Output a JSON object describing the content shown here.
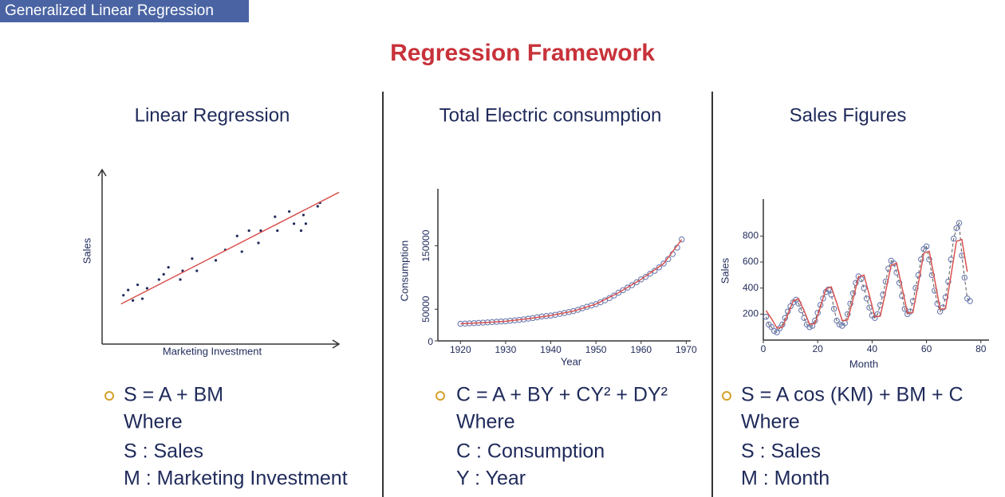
{
  "header": {
    "tag": "Generalized Linear Regression",
    "title": "Regression Framework"
  },
  "chart_data": [
    {
      "type": "scatter",
      "title": "Linear Regression",
      "x_label": "Marketing Investment",
      "y_label": "Sales",
      "xlim": [
        0,
        100
      ],
      "ylim": [
        0,
        100
      ],
      "arrows": true,
      "series": [
        {
          "color": "#1f2a5a",
          "mode": "markers",
          "marker": "dot",
          "x": [
            9,
            11,
            13,
            15,
            17,
            19,
            24,
            26,
            28,
            33,
            34,
            38,
            40,
            48,
            52,
            57,
            59,
            62,
            66,
            67,
            73,
            74,
            79,
            81,
            84,
            85,
            86,
            91,
            92
          ],
          "values": [
            28,
            31,
            25,
            34,
            26,
            32,
            37,
            40,
            44,
            37,
            42,
            49,
            42,
            48,
            54,
            62,
            53,
            65,
            58,
            65,
            73,
            65,
            76,
            69,
            65,
            74,
            69,
            79,
            81
          ]
        },
        {
          "color": "#d9534f",
          "mode": "line",
          "x": [
            8,
            100
          ],
          "values": [
            23,
            87
          ]
        }
      ]
    },
    {
      "type": "scatter",
      "title": "Total Electric consumption",
      "x_label": "Year",
      "y_label": "Consumption",
      "xlim": [
        1915,
        1971
      ],
      "ylim": [
        0,
        240000
      ],
      "xticks": [
        1920,
        1930,
        1940,
        1950,
        1960,
        1970
      ],
      "yticks": [
        0,
        50000,
        150000
      ],
      "series": [
        {
          "color": "#6c7bb0",
          "mode": "markers",
          "marker": "circle",
          "x": [
            1920,
            1921,
            1922,
            1923,
            1924,
            1925,
            1926,
            1927,
            1928,
            1929,
            1930,
            1931,
            1932,
            1933,
            1934,
            1935,
            1936,
            1937,
            1938,
            1939,
            1940,
            1941,
            1942,
            1943,
            1944,
            1945,
            1946,
            1947,
            1948,
            1949,
            1950,
            1951,
            1952,
            1953,
            1954,
            1955,
            1956,
            1957,
            1958,
            1959,
            1960,
            1961,
            1962,
            1963,
            1964,
            1965,
            1966,
            1967,
            1968,
            1969
          ],
          "values": [
            27000,
            27300,
            27600,
            28000,
            28400,
            28800,
            29200,
            29700,
            30100,
            30600,
            31000,
            31700,
            32400,
            33200,
            34000,
            35000,
            36000,
            37200,
            38500,
            39200,
            40000,
            41200,
            42600,
            44000,
            45500,
            47000,
            49000,
            51500,
            53800,
            55900,
            58000,
            61000,
            64000,
            67500,
            71500,
            76000,
            80000,
            84000,
            88000,
            92500,
            97000,
            101000,
            106000,
            110500,
            116000,
            122000,
            129000,
            137000,
            147000,
            160000
          ]
        },
        {
          "color": "#d9534f",
          "mode": "line",
          "x": [
            1920,
            1925,
            1930,
            1935,
            1940,
            1945,
            1950,
            1955,
            1960,
            1965,
            1969
          ],
          "values": [
            27000,
            28800,
            31000,
            35000,
            40000,
            47000,
            58000,
            76000,
            97000,
            122000,
            160000
          ]
        }
      ]
    },
    {
      "type": "scatter",
      "title": "Sales Figures",
      "x_label": "Month",
      "y_label": "Sales",
      "xlim": [
        0,
        83
      ],
      "ylim": [
        0,
        1084
      ],
      "xticks": [
        0,
        20,
        40,
        60,
        80
      ],
      "yticks": [
        200,
        400,
        600,
        800
      ],
      "series": [
        {
          "color": "#6c7bb0",
          "mode": "markers+line",
          "marker": "circle",
          "dash": true,
          "x": [
            1,
            2,
            3,
            4,
            5,
            6,
            7,
            8,
            9,
            10,
            11,
            12,
            13,
            14,
            15,
            16,
            17,
            18,
            19,
            20,
            21,
            22,
            23,
            24,
            25,
            26,
            27,
            28,
            29,
            30,
            31,
            32,
            33,
            34,
            35,
            36,
            37,
            38,
            39,
            40,
            41,
            42,
            43,
            44,
            45,
            46,
            47,
            48,
            49,
            50,
            51,
            52,
            53,
            54,
            55,
            56,
            57,
            58,
            59,
            60,
            61,
            62,
            63,
            64,
            65,
            66,
            67,
            68,
            69,
            70,
            71,
            72,
            73,
            74,
            75,
            76
          ],
          "values": [
            180,
            120,
            100,
            70,
            60,
            90,
            120,
            170,
            220,
            260,
            290,
            310,
            280,
            230,
            170,
            120,
            100,
            110,
            150,
            210,
            270,
            320,
            370,
            390,
            350,
            240,
            150,
            120,
            110,
            130,
            200,
            280,
            360,
            440,
            490,
            470,
            400,
            320,
            250,
            190,
            170,
            200,
            270,
            350,
            450,
            550,
            610,
            590,
            520,
            440,
            340,
            240,
            200,
            220,
            300,
            400,
            500,
            620,
            700,
            720,
            620,
            500,
            380,
            280,
            220,
            250,
            330,
            450,
            620,
            780,
            860,
            900,
            650,
            480,
            320,
            300
          ]
        },
        {
          "color": "#d9534f",
          "mode": "line",
          "x": [
            1,
            3,
            5,
            7,
            9,
            11,
            13,
            15,
            17,
            19,
            21,
            23,
            25,
            27,
            29,
            31,
            33,
            35,
            37,
            39,
            41,
            43,
            45,
            47,
            49,
            51,
            53,
            55,
            57,
            59,
            61,
            63,
            65,
            67,
            69,
            71,
            73,
            75
          ],
          "values": [
            227,
            165,
            93,
            98,
            195,
            303,
            318,
            225,
            122,
            126,
            255,
            394,
            409,
            285,
            150,
            155,
            315,
            485,
            500,
            345,
            179,
            184,
            375,
            576,
            592,
            405,
            208,
            213,
            435,
            668,
            683,
            465,
            237,
            242,
            495,
            759,
            774,
            525
          ]
        }
      ]
    }
  ],
  "panels": [
    {
      "formula": "S = A + BM",
      "lines": [
        "Where",
        "S : Sales",
        "M : Marketing Investment"
      ]
    },
    {
      "formula": "C = A + BY + CY² + DY²",
      "lines": [
        "Where",
        "C : Consumption",
        "Y : Year"
      ]
    },
    {
      "formula": "S = A cos (KM) + BM + C",
      "lines": [
        "Where",
        "S : Sales",
        "M : Month"
      ]
    }
  ]
}
